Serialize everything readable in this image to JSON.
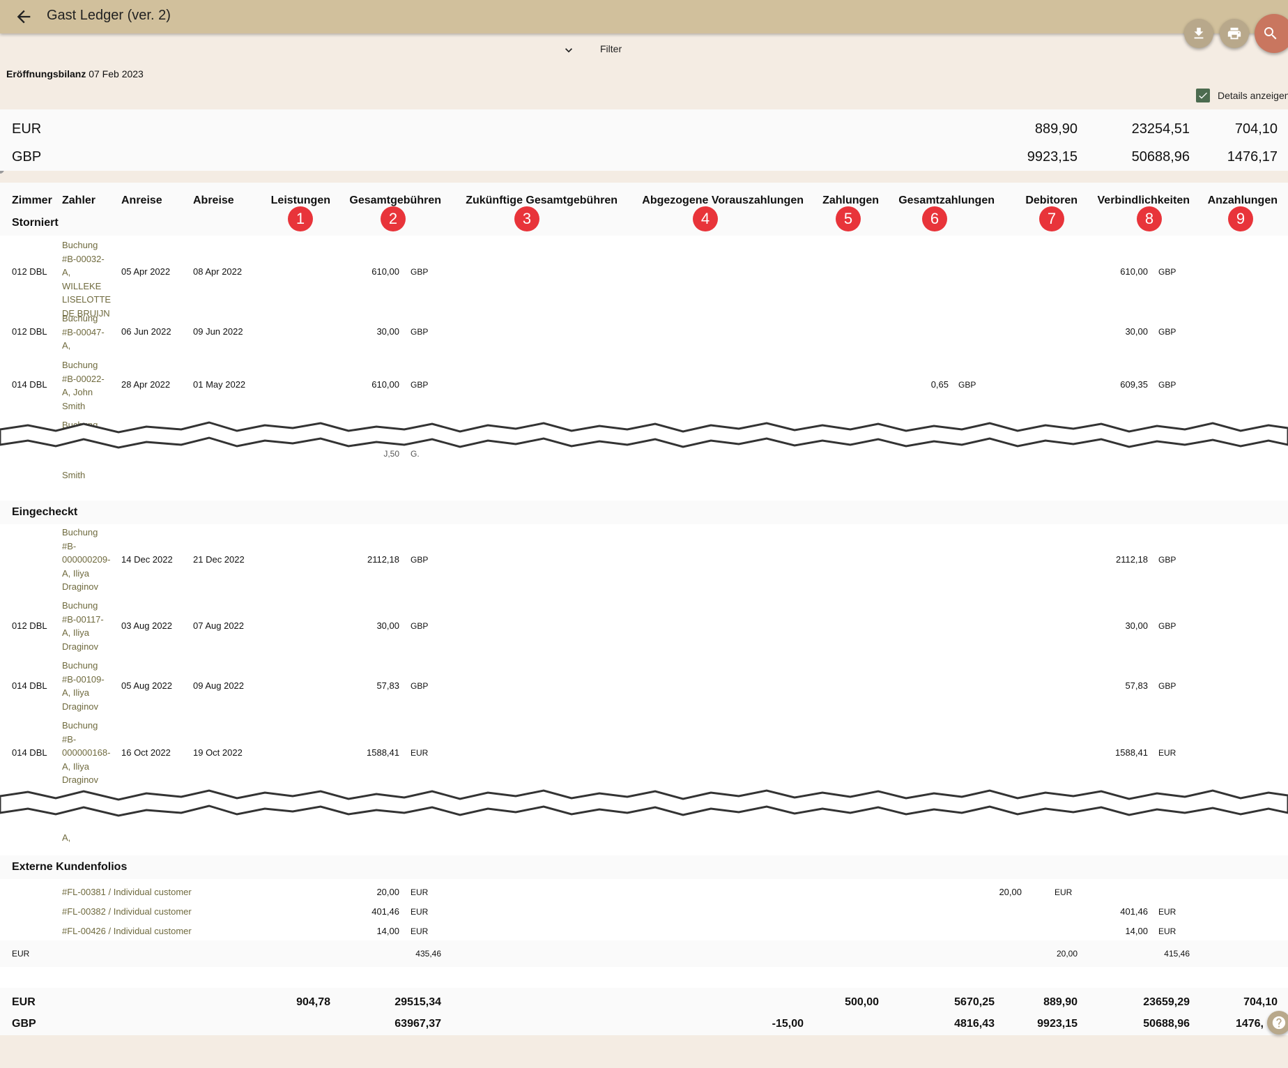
{
  "app": {
    "title": "Gast Ledger (ver. 2)"
  },
  "filter": {
    "label": "Filter"
  },
  "opening_balance": {
    "label": "Eröffnungsbilanz",
    "date": "07 Feb 2023"
  },
  "details_toggle": {
    "label": "Details anzeigen",
    "checked": true
  },
  "top_summary": [
    {
      "currency": "EUR",
      "debitoren": "889,90",
      "verbindlichkeiten": "23254,51",
      "anzahlungen": "704,10"
    },
    {
      "currency": "GBP",
      "debitoren": "9923,15",
      "verbindlichkeiten": "50688,96",
      "anzahlungen": "1476,17"
    }
  ],
  "columns": {
    "zimmer": "Zimmer",
    "zahler": "Zahler",
    "anreise": "Anreise",
    "abreise": "Abreise",
    "leistungen": "Leistungen",
    "gesamtgebuehren": "Gesamtgebühren",
    "zukuenftige": "Zukünftige Gesamtgebühren",
    "abgezogene": "Abgezogene Vorauszahlungen",
    "zahlungen": "Zahlungen",
    "gesamtzahlungen": "Gesamtzahlungen",
    "debitoren": "Debitoren",
    "verbindlichkeiten": "Verbindlichkeiten",
    "anzahlungen": "Anzahlungen"
  },
  "badges": [
    "1",
    "2",
    "3",
    "4",
    "5",
    "6",
    "7",
    "8",
    "9"
  ],
  "sections": {
    "storniert": {
      "title": "Storniert",
      "rows": [
        {
          "room": "012 DBL",
          "payer": "Buchung #B-00032-A, WILLEKE LISELOTTE DE BRUIJN",
          "arrival": "05 Apr 2022",
          "departure": "08 Apr 2022",
          "total_fees": "610,00",
          "total_fees_cur": "GBP",
          "total_payments": "",
          "total_payments_cur": "",
          "liabilities": "610,00",
          "liabilities_cur": "GBP"
        },
        {
          "room": "012 DBL",
          "payer": "Buchung #B-00047-A,",
          "arrival": "06 Jun 2022",
          "departure": "09 Jun 2022",
          "total_fees": "30,00",
          "total_fees_cur": "GBP",
          "total_payments": "",
          "total_payments_cur": "",
          "liabilities": "30,00",
          "liabilities_cur": "GBP"
        },
        {
          "room": "014 DBL",
          "payer": "Buchung #B-00022-A, John Smith",
          "arrival": "28 Apr 2022",
          "departure": "01 May 2022",
          "total_fees": "610,00",
          "total_fees_cur": "GBP",
          "total_payments": "0,65",
          "total_payments_cur": "GBP",
          "liabilities": "609,35",
          "liabilities_cur": "GBP"
        }
      ],
      "partial_top": "Buchung",
      "partial_bottom": "Smith",
      "partial_value": "J,50",
      "partial_cur": "G."
    },
    "eingecheckt": {
      "title": "Eingecheckt",
      "rows": [
        {
          "room": "",
          "payer": "Buchung #B-000000209-A, Iliya Draginov",
          "arrival": "14 Dec 2022",
          "departure": "21 Dec 2022",
          "total_fees": "2112,18",
          "total_fees_cur": "GBP",
          "liabilities": "2112,18",
          "liabilities_cur": "GBP"
        },
        {
          "room": "012 DBL",
          "payer": "Buchung #B-00117-A, Iliya Draginov",
          "arrival": "03 Aug 2022",
          "departure": "07 Aug 2022",
          "total_fees": "30,00",
          "total_fees_cur": "GBP",
          "liabilities": "30,00",
          "liabilities_cur": "GBP"
        },
        {
          "room": "014 DBL",
          "payer": "Buchung #B-00109-A, Iliya Draginov",
          "arrival": "05 Aug 2022",
          "departure": "09 Aug 2022",
          "total_fees": "57,83",
          "total_fees_cur": "GBP",
          "liabilities": "57,83",
          "liabilities_cur": "GBP"
        },
        {
          "room": "014 DBL",
          "payer": "Buchung #B-000000168-A, Iliya Draginov",
          "arrival": "16 Oct 2022",
          "departure": "19 Oct 2022",
          "total_fees": "1588,41",
          "total_fees_cur": "EUR",
          "liabilities": "1588,41",
          "liabilities_cur": "EUR"
        }
      ],
      "partial_bottom": "A,"
    },
    "extern": {
      "title": "Externe Kundenfolios",
      "rows": [
        {
          "folio": "#FL-00381 / Individual customer",
          "total_fees": "20,00",
          "total_fees_cur": "EUR",
          "debtors": "20,00",
          "debtors_cur": "EUR",
          "liabilities": "",
          "liabilities_cur": ""
        },
        {
          "folio": "#FL-00382 / Individual customer",
          "total_fees": "401,46",
          "total_fees_cur": "EUR",
          "debtors": "",
          "debtors_cur": "",
          "liabilities": "401,46",
          "liabilities_cur": "EUR"
        },
        {
          "folio": "#FL-00426 / Individual customer",
          "total_fees": "14,00",
          "total_fees_cur": "EUR",
          "debtors": "",
          "debtors_cur": "",
          "liabilities": "14,00",
          "liabilities_cur": "EUR"
        }
      ],
      "subtotal": {
        "currency": "EUR",
        "total_fees": "435,46",
        "debtors": "20,00",
        "liabilities": "415,46"
      }
    }
  },
  "totals": [
    {
      "currency": "EUR",
      "leistungen": "904,78",
      "gesamtgebuehren": "29515,34",
      "abgezogene": "",
      "zahlungen": "500,00",
      "gesamtzahlungen": "5670,25",
      "debitoren": "889,90",
      "verbindlichkeiten": "23659,29",
      "anzahlungen": "704,10"
    },
    {
      "currency": "GBP",
      "leistungen": "",
      "gesamtgebuehren": "63967,37",
      "abgezogene": "-15,00",
      "zahlungen": "",
      "gesamtzahlungen": "4816,43",
      "debitoren": "9923,15",
      "verbindlichkeiten": "50688,96",
      "anzahlungen": "1476,"
    }
  ],
  "colors": {
    "appbar": "#d1c09c",
    "page_bg": "#f4ece3",
    "badge": "#e8343a",
    "search_fab": "#c9765f",
    "checkbox": "#4c6b4f",
    "link": "#6f6a3e"
  },
  "icons": {
    "back": "arrow-left-icon",
    "download": "download-icon",
    "print": "print-icon",
    "search": "search-icon",
    "filter": "chevron-down-icon",
    "help": "help-icon"
  }
}
